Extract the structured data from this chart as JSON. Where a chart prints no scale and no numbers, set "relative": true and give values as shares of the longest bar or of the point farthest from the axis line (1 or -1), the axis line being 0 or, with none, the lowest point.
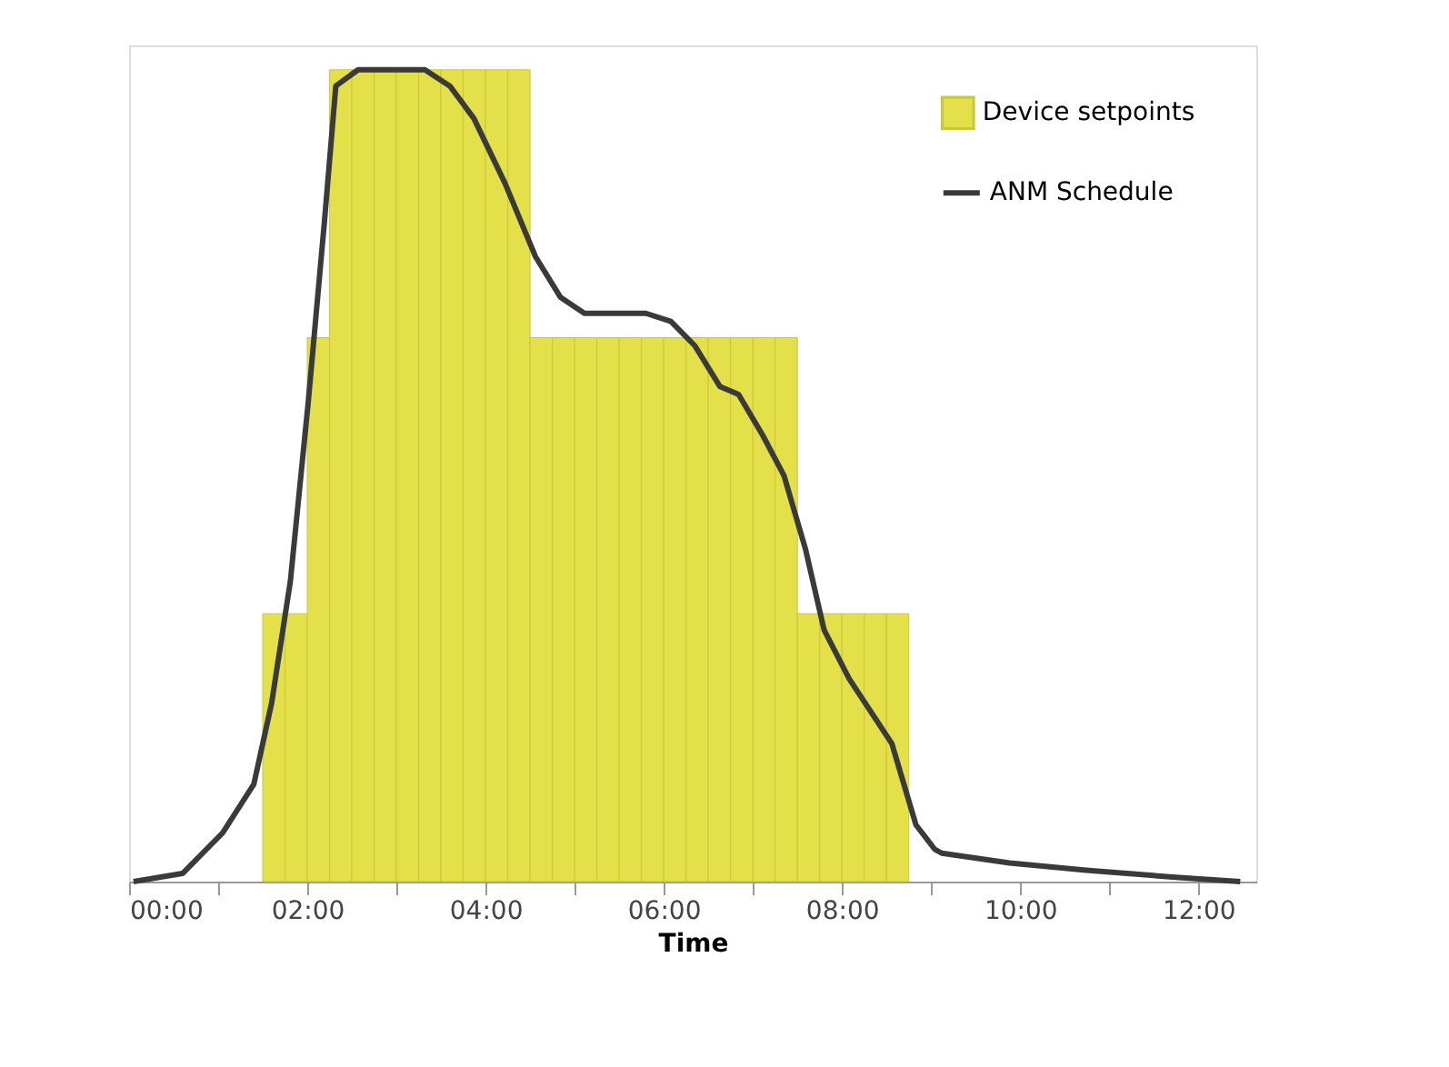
{
  "chart_data": {
    "type": "bar",
    "relative": true,
    "xlabel": "Time",
    "xlim": [
      0,
      12.65
    ],
    "xticks": [
      {
        "value": 0,
        "label": "00:00"
      },
      {
        "value": 1,
        "label": null
      },
      {
        "value": 2,
        "label": "02:00"
      },
      {
        "value": 3,
        "label": null
      },
      {
        "value": 4,
        "label": "04:00"
      },
      {
        "value": 5,
        "label": null
      },
      {
        "value": 6,
        "label": "06:00"
      },
      {
        "value": 7,
        "label": null
      },
      {
        "value": 8,
        "label": "08:00"
      },
      {
        "value": 9,
        "label": null
      },
      {
        "value": 10,
        "label": "10:00"
      },
      {
        "value": 11,
        "label": null
      },
      {
        "value": 12,
        "label": "12:00"
      }
    ],
    "legend": "top right",
    "series": [
      {
        "name": "Device setpoints",
        "color": "#e3e04a",
        "x": [
          1.625,
          1.875,
          2.125,
          2.375,
          2.625,
          2.875,
          3.125,
          3.375,
          3.625,
          3.875,
          4.125,
          4.375,
          4.625,
          4.875,
          5.125,
          5.375,
          5.625,
          5.875,
          6.125,
          6.375,
          6.625,
          6.875,
          7.125,
          7.375,
          7.625,
          7.875,
          8.125,
          8.375,
          8.625
        ],
        "values": [
          0.33,
          0.33,
          0.67,
          1,
          1,
          1,
          1,
          1,
          1,
          1,
          1,
          1,
          0.67,
          0.67,
          0.67,
          0.67,
          0.67,
          0.67,
          0.67,
          0.67,
          0.67,
          0.67,
          0.67,
          0.67,
          0.33,
          0.33,
          0.33,
          0.33,
          0.33
        ]
      },
      {
        "name": "ANM Schedule",
        "type": "line",
        "color": "#3a3a3a",
        "line_style": "solid",
        "marker": "none",
        "x": [
          0.05,
          0.6,
          1.05,
          1.4,
          1.6,
          1.81,
          2.01,
          2.19,
          2.32,
          2.57,
          3.32,
          3.6,
          3.87,
          4.22,
          4.56,
          4.84,
          5.11,
          5.8,
          6.08,
          6.35,
          6.63,
          6.84,
          7.11,
          7.35,
          7.59,
          7.8,
          8.08,
          8.56,
          8.83,
          9.04,
          9.12,
          9.88,
          10.74,
          11.78,
          12.47
        ],
        "values": [
          0,
          0.01,
          0.06,
          0.12,
          0.22,
          0.37,
          0.59,
          0.81,
          0.98,
          1,
          1,
          0.98,
          0.94,
          0.86,
          0.77,
          0.72,
          0.7,
          0.7,
          0.69,
          0.66,
          0.61,
          0.6,
          0.55,
          0.5,
          0.41,
          0.31,
          0.25,
          0.17,
          0.07,
          0.04,
          0.035,
          0.023,
          0.014,
          0.005,
          0
        ]
      }
    ]
  }
}
